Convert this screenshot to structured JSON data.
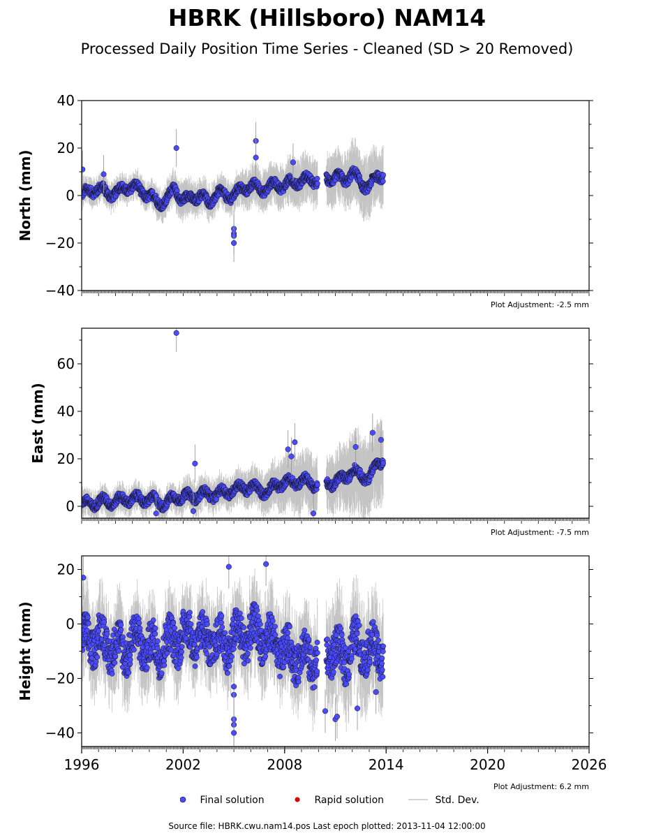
{
  "page": {
    "title": "HBRK (Hillsboro) NAM14",
    "subtitle": "Processed Daily Position Time Series - Cleaned (SD > 20 Removed)",
    "source_note": "Source file: HBRK.cwu.nam14.pos  Last epoch plotted: 2013-11-04 12:00:00"
  },
  "legend": {
    "final_label": "Final solution",
    "rapid_label": "Rapid solution",
    "std_label": "Std. Dev.",
    "final_color": "#4a4aff",
    "rapid_color": "#e00000",
    "std_color": "#bbbbbb"
  },
  "chart_data": [
    {
      "type": "scatter",
      "ylabel": "North (mm)",
      "ylim": [
        -40,
        40
      ],
      "yticks": [
        -40,
        -20,
        0,
        20,
        40
      ],
      "xlim": [
        1996,
        2026
      ],
      "adjustment": "Plot Adjustment: -2.5 mm",
      "series": [
        {
          "x": [
            1996.0,
            1996.5,
            1997.0,
            1997.5,
            1998.0,
            1998.5,
            1999.0,
            1999.5,
            2000.0,
            2000.5,
            2001.0,
            2001.5,
            2002.0,
            2002.5,
            2003.0,
            2003.5,
            2004.0,
            2004.5,
            2005.0,
            2005.5,
            2006.0,
            2006.5,
            2007.0,
            2007.5,
            2008.0,
            2008.5,
            2009.0,
            2009.5,
            2010.0,
            2010.5,
            2011.0,
            2011.5,
            2012.0,
            2012.5,
            2013.0,
            2013.5,
            2013.84
          ],
          "y": [
            0,
            2,
            3,
            1,
            1,
            3,
            4,
            2,
            0,
            -3,
            -2,
            3,
            -2,
            -1,
            0,
            -3,
            1,
            0,
            0,
            3,
            4,
            3,
            3,
            5,
            4,
            6,
            6,
            7,
            6,
            7,
            8,
            6,
            10,
            5,
            4,
            8,
            9
          ],
          "err": [
            4,
            4,
            4,
            4,
            4,
            4,
            4,
            4,
            4,
            5,
            5,
            5,
            6,
            5,
            5,
            5,
            5,
            5,
            5,
            5,
            6,
            6,
            6,
            6,
            7,
            7,
            7,
            7,
            7,
            7,
            8,
            8,
            9,
            9,
            9,
            9,
            9
          ]
        }
      ],
      "outliers": {
        "x": [
          1996.05,
          1997.3,
          2001.6,
          2005.0,
          2005.0,
          2005.0,
          2005.0,
          2006.3,
          2006.3,
          2008.5
        ],
        "y": [
          11,
          9,
          20,
          -14,
          -16,
          -17,
          -20,
          23,
          16,
          14
        ]
      }
    },
    {
      "type": "scatter",
      "ylabel": "East (mm)",
      "ylim": [
        -5,
        75
      ],
      "yticks": [
        0,
        20,
        40,
        60
      ],
      "xlim": [
        1996,
        2026
      ],
      "adjustment": "Plot Adjustment: -7.5 mm",
      "series": [
        {
          "x": [
            1996.0,
            1996.5,
            1997.0,
            1997.5,
            1998.0,
            1998.5,
            1999.0,
            1999.5,
            2000.0,
            2000.5,
            2001.0,
            2001.5,
            2002.0,
            2002.5,
            2003.0,
            2003.5,
            2004.0,
            2004.5,
            2005.0,
            2005.5,
            2006.0,
            2006.5,
            2007.0,
            2007.5,
            2008.0,
            2008.5,
            2009.0,
            2009.5,
            2010.0,
            2010.5,
            2011.0,
            2011.5,
            2012.0,
            2012.5,
            2013.0,
            2013.5,
            2013.84
          ],
          "y": [
            1,
            1,
            2,
            2,
            2,
            3,
            3,
            3,
            3,
            2,
            1,
            4,
            4,
            4,
            5,
            5,
            5,
            6,
            7,
            8,
            8,
            7,
            6,
            9,
            10,
            10,
            11,
            10,
            9,
            10,
            10,
            12,
            15,
            13,
            12,
            18,
            20
          ],
          "err": [
            4,
            4,
            4,
            4,
            4,
            4,
            4,
            4,
            4,
            4,
            4,
            4,
            5,
            5,
            5,
            5,
            5,
            5,
            5,
            5,
            6,
            6,
            6,
            7,
            8,
            9,
            9,
            9,
            8,
            8,
            9,
            10,
            12,
            12,
            12,
            12,
            12
          ]
        }
      ],
      "outliers": {
        "x": [
          2001.6,
          2002.7,
          2002.6,
          2008.2,
          2008.6,
          2008.4,
          2009.7,
          2012.2,
          2013.2,
          2013.7,
          2000.4
        ],
        "y": [
          73,
          18,
          -2,
          24,
          27,
          21,
          -3,
          25,
          31,
          28,
          -3
        ]
      }
    },
    {
      "type": "scatter",
      "ylabel": "Height (mm)",
      "ylim": [
        -45,
        25
      ],
      "yticks": [
        -40,
        -20,
        0,
        20
      ],
      "xlim": [
        1996,
        2026
      ],
      "xticks": [
        1996,
        2002,
        2008,
        2014,
        2020,
        2026
      ],
      "adjustment": "Plot Adjustment: 6.2 mm",
      "series": [
        {
          "x": [
            1996.0,
            1996.5,
            1997.0,
            1997.5,
            1998.0,
            1998.5,
            1999.0,
            1999.5,
            2000.0,
            2000.5,
            2001.0,
            2001.5,
            2002.0,
            2002.5,
            2003.0,
            2003.5,
            2004.0,
            2004.5,
            2005.0,
            2005.5,
            2006.0,
            2006.5,
            2007.0,
            2007.5,
            2008.0,
            2008.5,
            2009.0,
            2009.5,
            2010.0,
            2010.5,
            2011.0,
            2011.5,
            2012.0,
            2012.5,
            2013.0,
            2013.5,
            2013.84
          ],
          "y": [
            -5,
            -8,
            -3,
            -10,
            -6,
            -12,
            -4,
            -9,
            -7,
            -12,
            -5,
            -8,
            -2,
            -6,
            -4,
            -8,
            -5,
            -10,
            -3,
            -6,
            -2,
            -5,
            -4,
            -10,
            -8,
            -14,
            -9,
            -15,
            -10,
            -12,
            -8,
            -15,
            -6,
            -10,
            -8,
            -12,
            -10
          ],
          "err": [
            10,
            10,
            10,
            10,
            10,
            10,
            10,
            10,
            10,
            10,
            10,
            10,
            10,
            10,
            10,
            10,
            10,
            10,
            10,
            10,
            10,
            10,
            10,
            10,
            10,
            10,
            10,
            10,
            12,
            12,
            12,
            12,
            12,
            12,
            12,
            12,
            12
          ]
        }
      ],
      "outliers": {
        "x": [
          2005.0,
          2005.0,
          2005.0,
          2005.0,
          2005.0,
          1996.1,
          2006.9,
          2004.7,
          2010.4,
          2011.0,
          2011.1,
          2012.3,
          2013.4
        ],
        "y": [
          -35,
          -37,
          -40,
          -26,
          -23,
          17,
          22,
          21,
          -32,
          -35,
          -34,
          -31,
          -25
        ]
      }
    }
  ]
}
